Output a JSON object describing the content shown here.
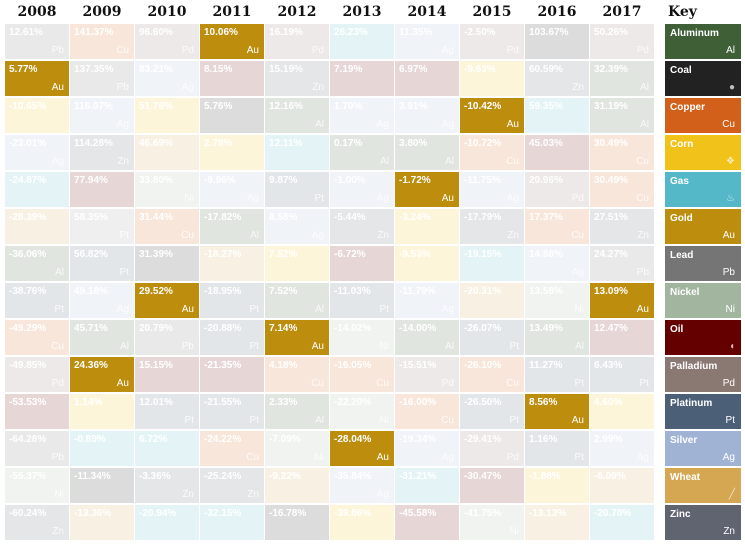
{
  "chart_data": {
    "type": "table",
    "title": "",
    "years": [
      "2008",
      "2009",
      "2010",
      "2011",
      "2012",
      "2013",
      "2014",
      "2015",
      "2016",
      "2017"
    ],
    "key_header": "Key",
    "commodities": [
      {
        "name": "Aluminum",
        "symbol": "Al",
        "color": "#3f5f37",
        "icon": "aluminum-icon"
      },
      {
        "name": "Coal",
        "symbol": "",
        "color": "#222222",
        "icon": "coal-icon"
      },
      {
        "name": "Copper",
        "symbol": "Cu",
        "color": "#d2601a",
        "icon": "copper-icon"
      },
      {
        "name": "Corn",
        "symbol": "",
        "color": "#f0c21a",
        "icon": "corn-icon"
      },
      {
        "name": "Gas",
        "symbol": "",
        "color": "#55b8c8",
        "icon": "flame-icon"
      },
      {
        "name": "Gold",
        "symbol": "Au",
        "color": "#bd8d0e",
        "icon": "gold-icon"
      },
      {
        "name": "Lead",
        "symbol": "Pb",
        "color": "#757575",
        "icon": "lead-icon"
      },
      {
        "name": "Nickel",
        "symbol": "Ni",
        "color": "#a2b59f",
        "icon": "nickel-icon"
      },
      {
        "name": "Oil",
        "symbol": "",
        "color": "#650000",
        "icon": "oil-drop-icon"
      },
      {
        "name": "Palladium",
        "symbol": "Pd",
        "color": "#8a7872",
        "icon": "palladium-icon"
      },
      {
        "name": "Platinum",
        "symbol": "Pt",
        "color": "#4b6077",
        "icon": "platinum-icon"
      },
      {
        "name": "Silver",
        "symbol": "Ag",
        "color": "#a0b3d5",
        "icon": "silver-icon"
      },
      {
        "name": "Wheat",
        "symbol": "",
        "color": "#d5a752",
        "icon": "wheat-icon"
      },
      {
        "name": "Zinc",
        "symbol": "Zn",
        "color": "#5f6470",
        "icon": "zinc-icon"
      }
    ],
    "highlight": "Gold",
    "columns": [
      [
        {
          "value": "12.61%",
          "commodity": "Lead"
        },
        {
          "value": "5.77%",
          "commodity": "Gold"
        },
        {
          "value": "-10.65%",
          "commodity": "Corn"
        },
        {
          "value": "-23.01%",
          "commodity": "Silver"
        },
        {
          "value": "-24.87%",
          "commodity": "Gas"
        },
        {
          "value": "-28.39%",
          "commodity": "Wheat"
        },
        {
          "value": "-36.06%",
          "commodity": "Aluminum"
        },
        {
          "value": "-38.76%",
          "commodity": "Platinum"
        },
        {
          "value": "-49.29%",
          "commodity": "Copper"
        },
        {
          "value": "-49.85%",
          "commodity": "Palladium"
        },
        {
          "value": "-53.53%",
          "commodity": "Oil"
        },
        {
          "value": "-64.28%",
          "commodity": "Lead"
        },
        {
          "value": "-55.37%",
          "commodity": "Nickel"
        },
        {
          "value": "-60.24%",
          "commodity": "Zinc"
        }
      ],
      [
        {
          "value": "141.37%",
          "commodity": "Copper"
        },
        {
          "value": "137.35%",
          "commodity": "Lead"
        },
        {
          "value": "116.07%",
          "commodity": "Silver"
        },
        {
          "value": "114.28%",
          "commodity": "Zinc"
        },
        {
          "value": "77.94%",
          "commodity": "Oil"
        },
        {
          "value": "58.35%",
          "commodity": "Pt"
        },
        {
          "value": "56.82%",
          "commodity": "Platinum"
        },
        {
          "value": "49.18%",
          "commodity": "Silver"
        },
        {
          "value": "45.71%",
          "commodity": "Aluminum"
        },
        {
          "value": "24.36%",
          "commodity": "Gold"
        },
        {
          "value": "1.14%",
          "commodity": "Corn"
        },
        {
          "value": "-0.89%",
          "commodity": "Gas"
        },
        {
          "value": "-11.34%",
          "commodity": "Coal"
        },
        {
          "value": "-13.36%",
          "commodity": "Wheat"
        }
      ],
      [
        {
          "value": "96.60%",
          "commodity": "Palladium"
        },
        {
          "value": "83.21%",
          "commodity": "Silver"
        },
        {
          "value": "51.76%",
          "commodity": "Corn"
        },
        {
          "value": "46.69%",
          "commodity": "Wheat"
        },
        {
          "value": "33.80%",
          "commodity": "Nickel"
        },
        {
          "value": "31.44%",
          "commodity": "Copper"
        },
        {
          "value": "31.39%",
          "commodity": "Coal"
        },
        {
          "value": "29.52%",
          "commodity": "Gold"
        },
        {
          "value": "20.79%",
          "commodity": "Lead"
        },
        {
          "value": "15.15%",
          "commodity": "Oil"
        },
        {
          "value": "12.01%",
          "commodity": "Platinum"
        },
        {
          "value": "6.72%",
          "commodity": "Gas"
        },
        {
          "value": "-3.36%",
          "commodity": "Zinc"
        },
        {
          "value": "-20.94%",
          "commodity": "Gas"
        }
      ],
      [
        {
          "value": "10.06%",
          "commodity": "Gold"
        },
        {
          "value": "8.15%",
          "commodity": "Oil"
        },
        {
          "value": "5.76%",
          "commodity": "Coal"
        },
        {
          "value": "2.79%",
          "commodity": "Corn"
        },
        {
          "value": "-9.96%",
          "commodity": "Silver"
        },
        {
          "value": "-17.82%",
          "commodity": "Aluminum"
        },
        {
          "value": "-18.27%",
          "commodity": "Wheat"
        },
        {
          "value": "-18.95%",
          "commodity": "Platinum"
        },
        {
          "value": "-20.88%",
          "commodity": "Platinum"
        },
        {
          "value": "-21.35%",
          "commodity": "Oil"
        },
        {
          "value": "-21.55%",
          "commodity": "Platinum"
        },
        {
          "value": "-24.22%",
          "commodity": "Copper"
        },
        {
          "value": "-25.24%",
          "commodity": "Zinc"
        },
        {
          "value": "-32.15%",
          "commodity": "Gas"
        }
      ],
      [
        {
          "value": "16.19%",
          "commodity": "Palladium"
        },
        {
          "value": "15.19%",
          "commodity": "Zinc"
        },
        {
          "value": "12.16%",
          "commodity": "Aluminum"
        },
        {
          "value": "12.11%",
          "commodity": "Gas"
        },
        {
          "value": "9.87%",
          "commodity": "Platinum"
        },
        {
          "value": "8.58%",
          "commodity": "Silver"
        },
        {
          "value": "7.52%",
          "commodity": "Corn"
        },
        {
          "value": "7.52%",
          "commodity": "Aluminum"
        },
        {
          "value": "7.14%",
          "commodity": "Gold"
        },
        {
          "value": "4.18%",
          "commodity": "Copper"
        },
        {
          "value": "2.33%",
          "commodity": "Aluminum"
        },
        {
          "value": "-7.09%",
          "commodity": "Nickel"
        },
        {
          "value": "-9.22%",
          "commodity": "Wheat"
        },
        {
          "value": "-16.78%",
          "commodity": "Coal"
        }
      ],
      [
        {
          "value": "26.23%",
          "commodity": "Gas"
        },
        {
          "value": "7.19%",
          "commodity": "Oil"
        },
        {
          "value": "1.70%",
          "commodity": "Silver"
        },
        {
          "value": "0.17%",
          "commodity": "Aluminum"
        },
        {
          "value": "-1.00%",
          "commodity": "Silver"
        },
        {
          "value": "-5.44%",
          "commodity": "Zinc"
        },
        {
          "value": "-6.72%",
          "commodity": "Oil"
        },
        {
          "value": "-11.03%",
          "commodity": "Platinum"
        },
        {
          "value": "-14.02%",
          "commodity": "Nickel"
        },
        {
          "value": "-16.05%",
          "commodity": "Copper"
        },
        {
          "value": "-22.20%",
          "commodity": "Nickel"
        },
        {
          "value": "-28.04%",
          "commodity": "Gold"
        },
        {
          "value": "-35.84%",
          "commodity": "Silver"
        },
        {
          "value": "-39.86%",
          "commodity": "Corn"
        }
      ],
      [
        {
          "value": "11.35%",
          "commodity": "Silver"
        },
        {
          "value": "6.97%",
          "commodity": "Oil"
        },
        {
          "value": "3.91%",
          "commodity": "Silver"
        },
        {
          "value": "3.80%",
          "commodity": "Aluminum"
        },
        {
          "value": "-1.72%",
          "commodity": "Gold"
        },
        {
          "value": "-3.24%",
          "commodity": "Corn"
        },
        {
          "value": "-9.53%",
          "commodity": "Corn"
        },
        {
          "value": "-11.79%",
          "commodity": "Silver"
        },
        {
          "value": "-14.00%",
          "commodity": "Aluminum"
        },
        {
          "value": "-15.51%",
          "commodity": "Palladium"
        },
        {
          "value": "-16.00%",
          "commodity": "Copper"
        },
        {
          "value": "-19.34%",
          "commodity": "Silver"
        },
        {
          "value": "-31.21%",
          "commodity": "Gas"
        },
        {
          "value": "-45.58%",
          "commodity": "Oil"
        }
      ],
      [
        {
          "value": "-2.50%",
          "commodity": "Palladium"
        },
        {
          "value": "-9.63%",
          "commodity": "Corn"
        },
        {
          "value": "-10.42%",
          "commodity": "Gold"
        },
        {
          "value": "-10.72%",
          "commodity": "Copper"
        },
        {
          "value": "-11.75%",
          "commodity": "Silver"
        },
        {
          "value": "-17.79%",
          "commodity": "Zinc"
        },
        {
          "value": "-19.15%",
          "commodity": "Gas"
        },
        {
          "value": "-20.31%",
          "commodity": "Wheat"
        },
        {
          "value": "-26.07%",
          "commodity": "Platinum"
        },
        {
          "value": "-26.10%",
          "commodity": "Copper"
        },
        {
          "value": "-26.50%",
          "commodity": "Platinum"
        },
        {
          "value": "-29.41%",
          "commodity": "Palladium"
        },
        {
          "value": "-30.47%",
          "commodity": "Oil"
        },
        {
          "value": "-41.75%",
          "commodity": "Nickel"
        }
      ],
      [
        {
          "value": "103.67%",
          "commodity": "Coal"
        },
        {
          "value": "60.59%",
          "commodity": "Zinc"
        },
        {
          "value": "59.35%",
          "commodity": "Gas"
        },
        {
          "value": "45.03%",
          "commodity": "Oil"
        },
        {
          "value": "20.96%",
          "commodity": "Palladium"
        },
        {
          "value": "17.37%",
          "commodity": "Copper"
        },
        {
          "value": "14.86%",
          "commodity": "Silver"
        },
        {
          "value": "13.58%",
          "commodity": "Nickel"
        },
        {
          "value": "13.49%",
          "commodity": "Aluminum"
        },
        {
          "value": "11.27%",
          "commodity": "Platinum"
        },
        {
          "value": "8.56%",
          "commodity": "Gold"
        },
        {
          "value": "1.16%",
          "commodity": "Platinum"
        },
        {
          "value": "-1.88%",
          "commodity": "Corn"
        },
        {
          "value": "-13.13%",
          "commodity": "Wheat"
        }
      ],
      [
        {
          "value": "50.26%",
          "commodity": "Palladium"
        },
        {
          "value": "32.39%",
          "commodity": "Aluminum"
        },
        {
          "value": "31.19%",
          "commodity": "Aluminum"
        },
        {
          "value": "30.49%",
          "commodity": "Copper"
        },
        {
          "value": "30.49%",
          "commodity": "Copper"
        },
        {
          "value": "27.51%",
          "commodity": "Zinc"
        },
        {
          "value": "24.27%",
          "commodity": "Lead"
        },
        {
          "value": "13.09%",
          "commodity": "Gold"
        },
        {
          "value": "12.47%",
          "commodity": "Oil"
        },
        {
          "value": "6.43%",
          "commodity": "Platinum"
        },
        {
          "value": "4.60%",
          "commodity": "Corn"
        },
        {
          "value": "2.99%",
          "commodity": "Silver"
        },
        {
          "value": "-6.09%",
          "commodity": "Wheat"
        },
        {
          "value": "-20.70%",
          "commodity": "Gas"
        }
      ]
    ]
  }
}
